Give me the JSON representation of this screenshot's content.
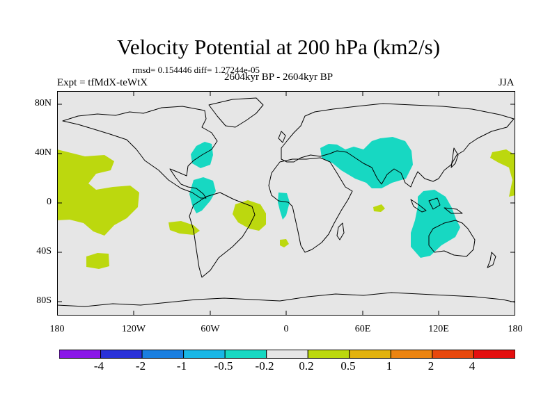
{
  "header": {
    "title": "Velocity Potential at 200 hPa (km2/s)",
    "stats": "rmsd= 0.154446 diff= 1.27244e-05",
    "experiment": "Expt = tfMdX-teWtX",
    "period": "2604kyr BP - 2604kyr BP",
    "season": "JJA"
  },
  "axes": {
    "y_ticks": [
      "80N",
      "40N",
      "0",
      "40S",
      "80S"
    ],
    "x_ticks": [
      "180",
      "120W",
      "60W",
      "0",
      "60E",
      "120E",
      "180"
    ]
  },
  "legend": {
    "labels": [
      "-4",
      "-2",
      "-1",
      "-0.5",
      "-0.2",
      "0.2",
      "0.5",
      "1",
      "2",
      "4"
    ],
    "colors": [
      "#8a16e8",
      "#2a31d8",
      "#1a7fe0",
      "#19b7e6",
      "#17d8c2",
      "#e6e6e6",
      "#bcd80e",
      "#e2b20e",
      "#ec8410",
      "#e8480c",
      "#e40f0f"
    ]
  },
  "colors": {
    "ocean_background": "#e6e6e6",
    "negative_anomaly": "#17d8c2",
    "positive_anomaly": "#bcd80e",
    "coastline": "#000000"
  }
}
